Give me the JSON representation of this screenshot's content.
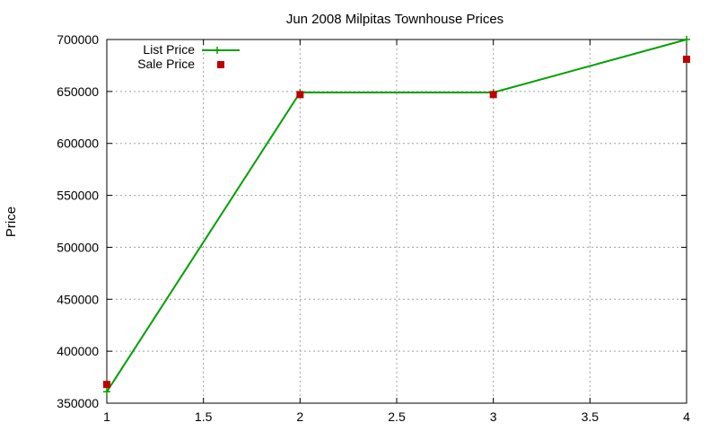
{
  "chart_data": {
    "type": "line",
    "title": "Jun 2008 Milpitas Townhouse Prices",
    "xlabel": "",
    "ylabel": "Price",
    "xlim": [
      1,
      4
    ],
    "ylim": [
      350000,
      700000
    ],
    "x_ticks": [
      "1",
      "1.5",
      "2",
      "2.5",
      "3",
      "3.5",
      "4"
    ],
    "y_ticks": [
      "350000",
      "400000",
      "450000",
      "500000",
      "550000",
      "600000",
      "650000",
      "700000"
    ],
    "grid": true,
    "legend_position": "top-left",
    "series": [
      {
        "name": "List Price",
        "style": "line-points",
        "marker": "plus",
        "color": "#00a000",
        "x": [
          1,
          2,
          3,
          4
        ],
        "y": [
          361000,
          649000,
          649000,
          700000
        ]
      },
      {
        "name": "Sale Price",
        "style": "points",
        "marker": "square",
        "color": "#c00000",
        "x": [
          1,
          2,
          3,
          4
        ],
        "y": [
          368000,
          647000,
          647000,
          681000
        ]
      }
    ]
  }
}
